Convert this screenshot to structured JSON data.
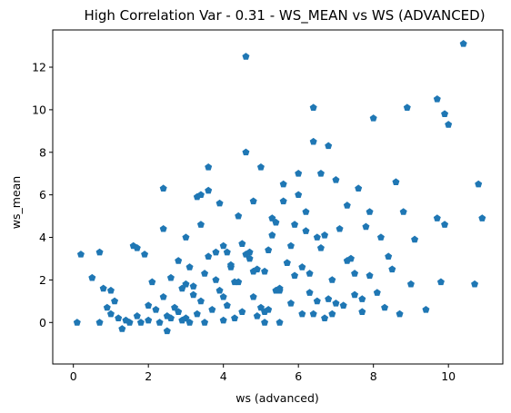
{
  "chart_data": {
    "type": "scatter",
    "title": "High Correlation Var - 0.31 - WS_MEAN vs WS (ADVANCED)",
    "xlabel": "ws (advanced)",
    "ylabel": "ws_mean",
    "xlim": [
      -0.55,
      11.45
    ],
    "ylim": [
      -1.95,
      13.75
    ],
    "xticks": [
      0,
      2,
      4,
      6,
      8,
      10
    ],
    "yticks": [
      0,
      2,
      4,
      6,
      8,
      10,
      12
    ],
    "grid": false,
    "marker": "pentagon",
    "color": "#1f77b4",
    "series": [
      {
        "name": "",
        "x": [
          0.1,
          0.2,
          0.5,
          0.7,
          0.7,
          0.8,
          0.9,
          1.0,
          1.0,
          1.1,
          1.2,
          1.3,
          1.4,
          1.5,
          1.6,
          1.7,
          1.7,
          1.8,
          1.9,
          2.0,
          2.0,
          2.1,
          2.2,
          2.3,
          2.4,
          2.4,
          2.5,
          2.5,
          2.6,
          2.6,
          2.7,
          2.8,
          2.8,
          2.9,
          2.9,
          3.0,
          3.0,
          3.0,
          3.1,
          3.1,
          3.2,
          3.3,
          3.3,
          3.4,
          3.4,
          3.5,
          3.5,
          3.6,
          3.7,
          3.8,
          3.9,
          4.0,
          4.0,
          4.1,
          4.2,
          4.3,
          4.4,
          4.5,
          4.6,
          4.6,
          4.7,
          4.8,
          4.9,
          5.0,
          5.1,
          5.2,
          5.3,
          5.4,
          5.5,
          5.6,
          5.7,
          5.8,
          5.9,
          6.0,
          6.1,
          6.2,
          6.3,
          6.4,
          6.4,
          6.5,
          6.6,
          6.7,
          6.8,
          6.9,
          7.0,
          7.1,
          7.2,
          7.3,
          7.4,
          7.5,
          7.6,
          7.7,
          7.8,
          7.9,
          8.0,
          8.1,
          8.2,
          8.3,
          8.4,
          8.5,
          8.6,
          8.7,
          8.8,
          8.9,
          9.0,
          9.1,
          9.4,
          9.7,
          9.7,
          9.8,
          9.9,
          9.9,
          10.0,
          10.4,
          10.7,
          10.8,
          10.9,
          2.4,
          3.4,
          3.6,
          4.6,
          4.1,
          4.8,
          5.5,
          6.2,
          5.9,
          5.1,
          4.5,
          5.7,
          6.8,
          5.3,
          6.0,
          4.9,
          5.6,
          6.3,
          4.7,
          6.5,
          3.2,
          3.8,
          7.0,
          7.5,
          5.0,
          4.3,
          6.6,
          5.2,
          3.9,
          6.1,
          5.4,
          4.4,
          6.9,
          7.3,
          5.8,
          4.0,
          3.6,
          7.7,
          6.7,
          5.5,
          4.2,
          7.9,
          5.1,
          6.4,
          4.8
        ],
        "y": [
          0.0,
          3.2,
          2.1,
          3.3,
          0.0,
          1.6,
          0.7,
          1.5,
          0.4,
          1.0,
          0.2,
          -0.3,
          0.1,
          0.0,
          3.6,
          3.5,
          0.3,
          0.0,
          3.2,
          0.8,
          0.1,
          1.9,
          0.6,
          0.0,
          4.4,
          1.2,
          0.3,
          -0.4,
          2.1,
          0.2,
          0.7,
          2.9,
          0.5,
          1.6,
          0.1,
          4.0,
          1.8,
          0.2,
          2.6,
          0.0,
          1.3,
          5.9,
          0.4,
          4.6,
          1.0,
          2.3,
          0.0,
          3.1,
          0.6,
          2.0,
          1.5,
          0.1,
          3.6,
          0.8,
          2.7,
          0.2,
          1.9,
          0.5,
          12.5,
          8.0,
          3.3,
          1.2,
          0.3,
          7.3,
          2.4,
          0.6,
          4.1,
          1.5,
          0.0,
          6.5,
          2.8,
          0.9,
          4.6,
          7.0,
          0.4,
          5.2,
          2.3,
          10.1,
          8.5,
          1.0,
          3.5,
          0.2,
          8.3,
          2.0,
          6.7,
          4.4,
          0.8,
          5.5,
          3.0,
          1.3,
          6.3,
          0.5,
          4.5,
          2.2,
          9.6,
          1.4,
          4.0,
          0.7,
          3.1,
          2.5,
          6.6,
          0.4,
          5.2,
          10.1,
          1.8,
          3.9,
          0.6,
          10.5,
          4.9,
          1.9,
          9.8,
          4.6,
          9.3,
          13.1,
          1.8,
          6.5,
          4.9,
          6.3,
          6.0,
          7.3,
          3.2,
          3.3,
          5.7,
          1.6,
          4.3,
          2.2,
          0.5,
          3.7,
          2.8,
          1.1,
          4.9,
          6.0,
          2.5,
          5.7,
          1.4,
          3.0,
          4.0,
          1.7,
          3.3,
          0.9,
          2.3,
          0.7,
          1.9,
          7.0,
          3.4,
          5.6,
          2.6,
          4.7,
          5.0,
          0.4,
          2.9,
          3.6,
          1.2,
          6.2,
          1.1,
          4.1,
          1.5,
          2.6,
          5.2,
          0.0,
          0.4,
          2.4
        ]
      }
    ]
  }
}
